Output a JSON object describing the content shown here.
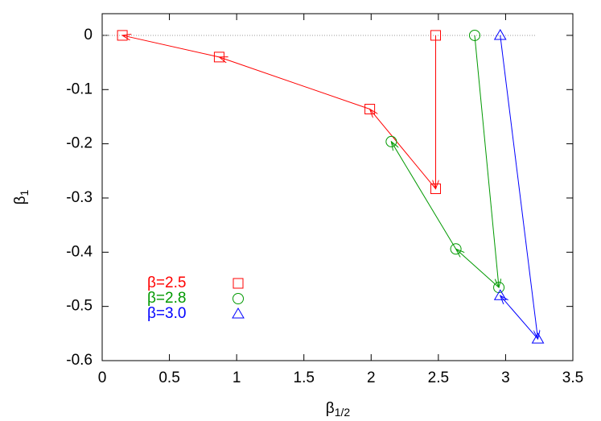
{
  "chart_data": {
    "type": "scatter",
    "xlabel": "β",
    "xlabel_sub": "1/2",
    "ylabel": "β",
    "ylabel_sub": "1",
    "xlim": [
      0,
      3.5
    ],
    "xticks": [
      0,
      0.5,
      1,
      1.5,
      2,
      2.5,
      3,
      3.5
    ],
    "ylim": [
      -0.6,
      0.04
    ],
    "yticks": [
      0,
      -0.1,
      -0.2,
      -0.3,
      -0.4,
      -0.5,
      -0.6
    ],
    "zero_line": true,
    "arrows": true,
    "legend": "lower-left",
    "series": [
      {
        "name": "β=2.5",
        "color": "#ff0000",
        "marker": "square",
        "x": [
          2.48,
          2.48,
          1.99,
          0.87,
          0.15
        ],
        "y": [
          0,
          -0.283,
          -0.136,
          -0.04,
          0
        ]
      },
      {
        "name": "β=2.8",
        "color": "#009900",
        "marker": "circle",
        "x": [
          2.77,
          2.95,
          2.63,
          2.15
        ],
        "y": [
          0,
          -0.465,
          -0.394,
          -0.196
        ]
      },
      {
        "name": "β=3.0",
        "color": "#0000ff",
        "marker": "triangle",
        "x": [
          2.96,
          3.24,
          2.96
        ],
        "y": [
          0,
          -0.56,
          -0.48
        ]
      }
    ]
  }
}
